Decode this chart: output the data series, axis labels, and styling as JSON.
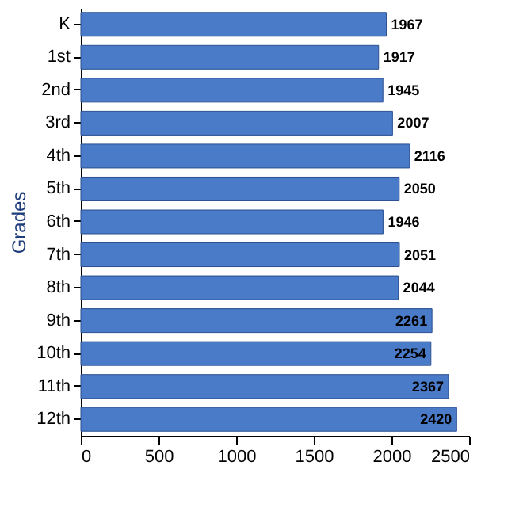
{
  "chart_data": {
    "type": "bar",
    "orientation": "horizontal",
    "ylabel": "Grades",
    "categories": [
      "K",
      "1st",
      "2nd",
      "3rd",
      "4th",
      "5th",
      "6th",
      "7th",
      "8th",
      "9th",
      "10th",
      "11th",
      "12th"
    ],
    "values": [
      1967,
      1917,
      1945,
      2007,
      2116,
      2050,
      1946,
      2051,
      2044,
      2261,
      2254,
      2367,
      2420
    ],
    "color": "#4a7bc8",
    "xlim": [
      0,
      2500
    ],
    "xticks": [
      0,
      500,
      1000,
      1500,
      2000,
      2500
    ],
    "data_labels": true,
    "grid": false
  }
}
